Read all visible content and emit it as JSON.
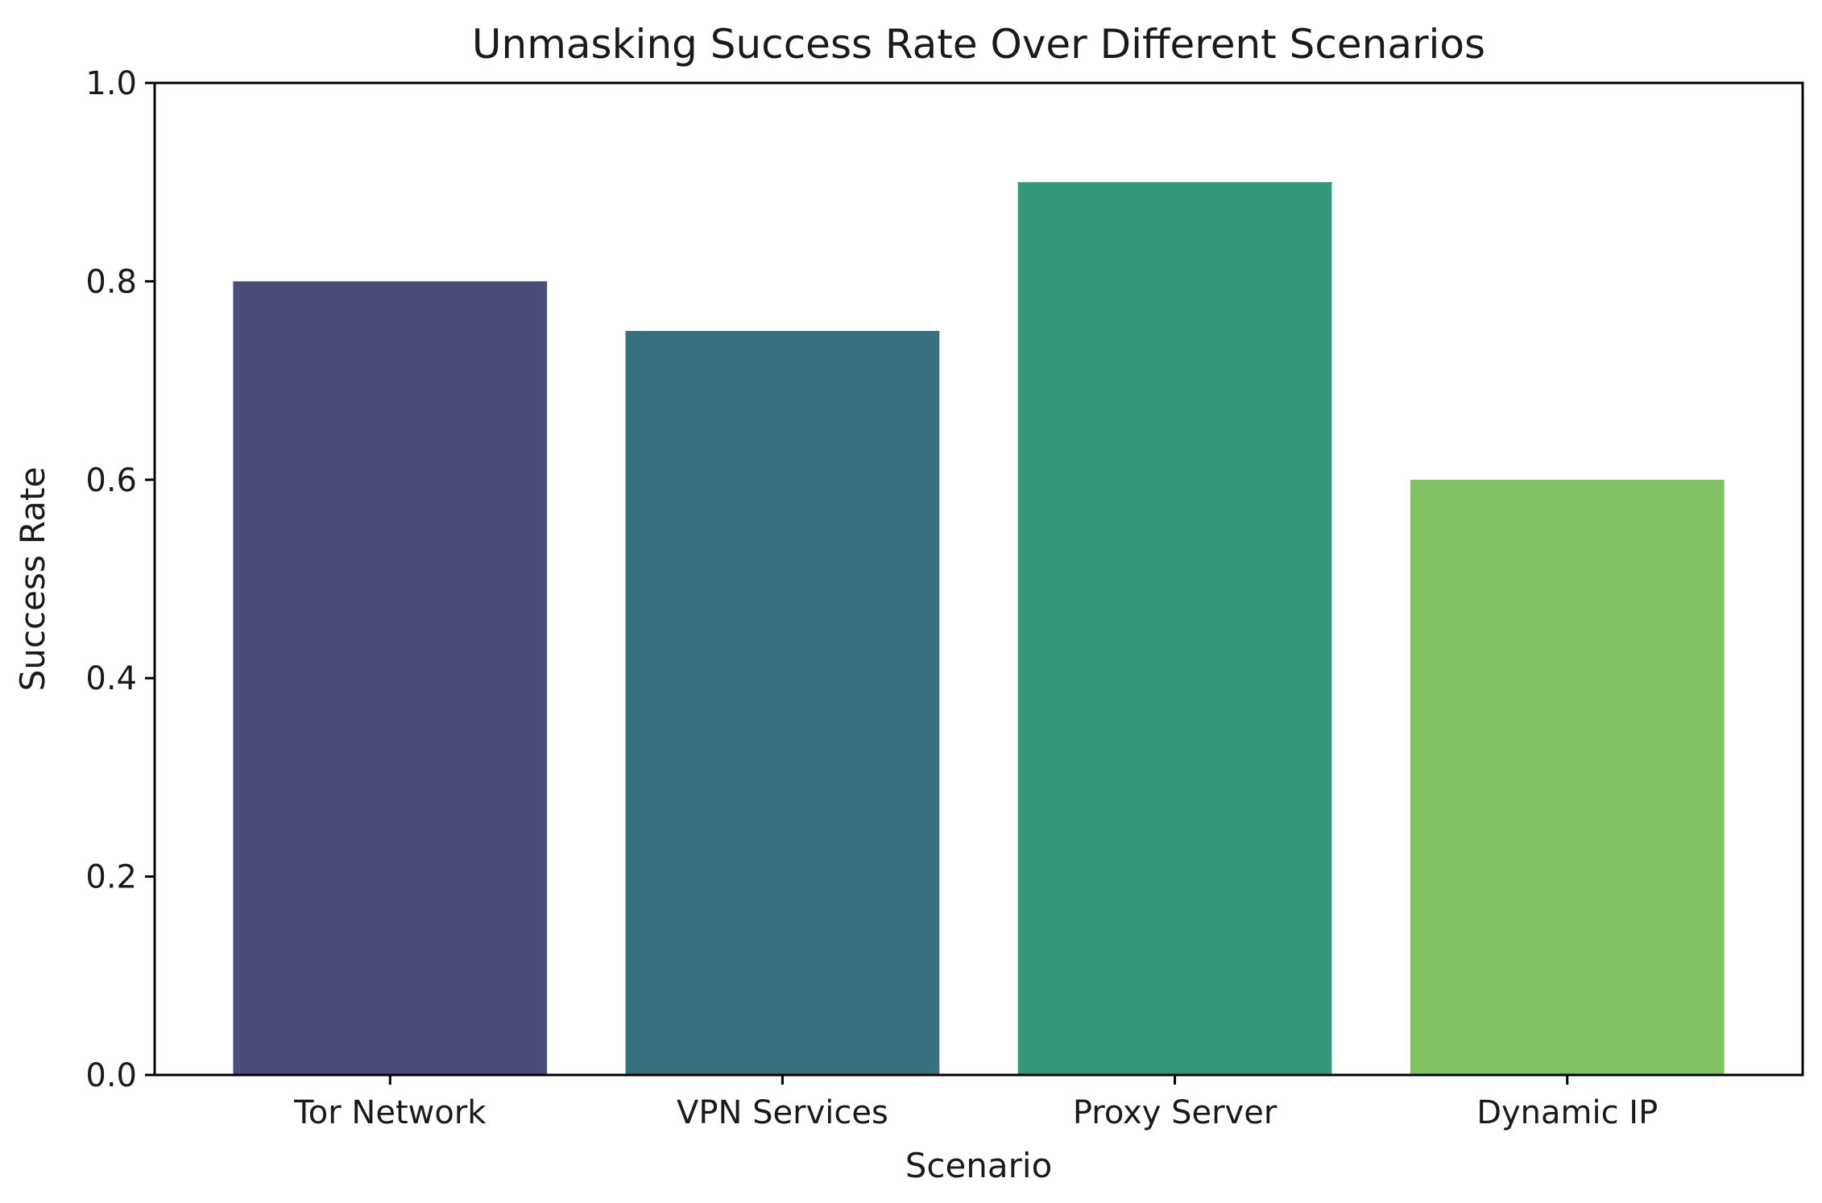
{
  "chart_data": {
    "type": "bar",
    "title": "Unmasking Success Rate Over Different Scenarios",
    "xlabel": "Scenario",
    "ylabel": "Success Rate",
    "categories": [
      "Tor Network",
      "VPN Services",
      "Proxy Server",
      "Dynamic IP"
    ],
    "values": [
      0.8,
      0.75,
      0.9,
      0.6
    ],
    "colors": [
      "#4a4c7b",
      "#37717f",
      "#36987b",
      "#80c161"
    ],
    "ylim": [
      0,
      1.0
    ],
    "yticks": [
      "0.0",
      "0.2",
      "0.4",
      "0.6",
      "0.8",
      "1.0"
    ],
    "grid": false,
    "legend": "none"
  }
}
